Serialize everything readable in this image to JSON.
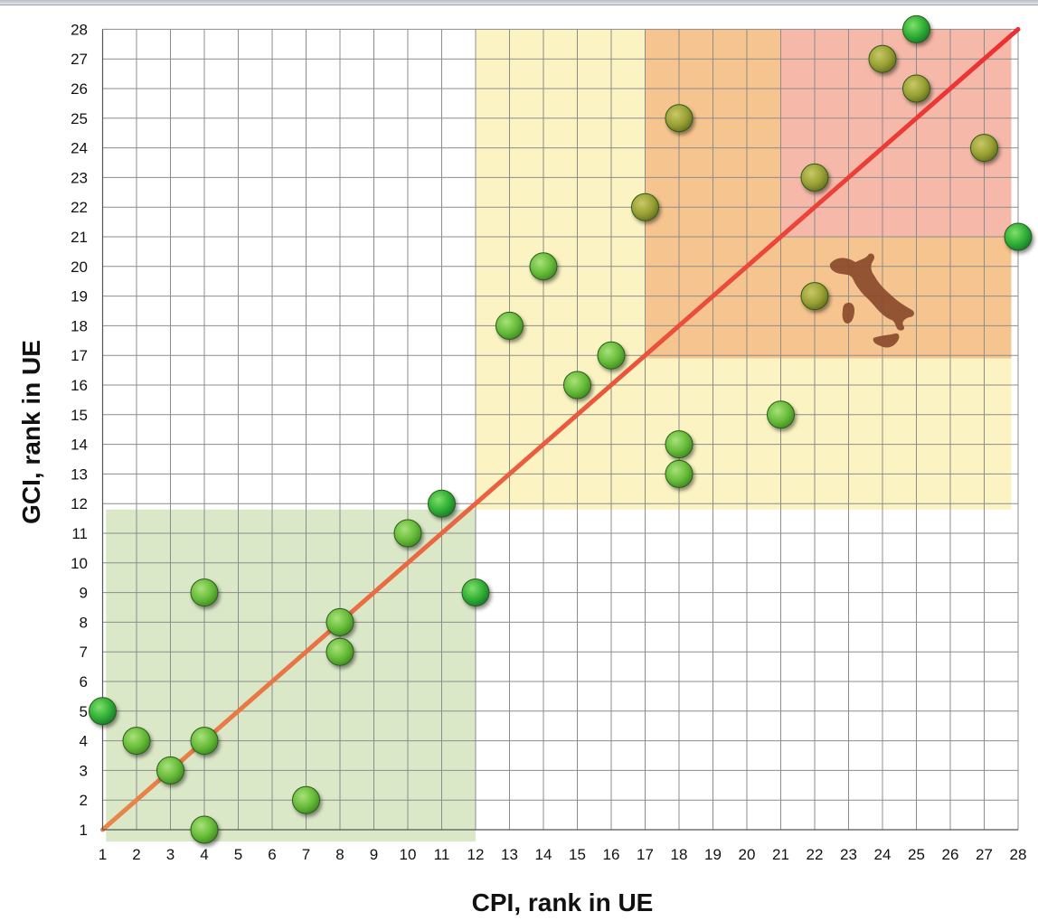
{
  "chart_data": {
    "type": "scatter",
    "xlabel": "CPI, rank in UE",
    "ylabel": "GCI, rank in UE",
    "xlim": [
      1,
      28
    ],
    "ylim": [
      1,
      28
    ],
    "x_ticks": [
      1,
      2,
      3,
      4,
      5,
      6,
      7,
      8,
      9,
      10,
      11,
      12,
      13,
      14,
      15,
      16,
      17,
      18,
      19,
      20,
      21,
      22,
      23,
      24,
      25,
      26,
      27,
      28
    ],
    "y_ticks": [
      1,
      2,
      3,
      4,
      5,
      6,
      7,
      8,
      9,
      10,
      11,
      12,
      13,
      14,
      15,
      16,
      17,
      18,
      19,
      20,
      21,
      22,
      23,
      24,
      25,
      26,
      27,
      28
    ],
    "grid": true,
    "diagonal_line": {
      "from": [
        1,
        1
      ],
      "to": [
        28,
        28
      ]
    },
    "regions": [
      {
        "x": [
          1.1,
          12
        ],
        "y": [
          0.6,
          11.8
        ],
        "color": "#dbe8c8"
      },
      {
        "x": [
          12,
          27.8
        ],
        "y": [
          11.8,
          28
        ],
        "color": "#fbf4c2"
      },
      {
        "x": [
          17,
          27.8
        ],
        "y": [
          16.9,
          28
        ],
        "color": "#f6c48e"
      },
      {
        "x": [
          21,
          27.8
        ],
        "y": [
          21,
          28
        ],
        "color": "#f6b8a8"
      }
    ],
    "marker_colors": {
      "green": "#3cb339",
      "lime": "#6fbf3a",
      "olive": "#9aa236"
    },
    "points": [
      {
        "x": 1,
        "y": 5,
        "color": "green"
      },
      {
        "x": 2,
        "y": 4,
        "color": "lime"
      },
      {
        "x": 3,
        "y": 3,
        "color": "lime"
      },
      {
        "x": 4,
        "y": 4,
        "color": "lime"
      },
      {
        "x": 4,
        "y": 1,
        "color": "lime"
      },
      {
        "x": 4,
        "y": 9,
        "color": "lime"
      },
      {
        "x": 7,
        "y": 2,
        "color": "lime"
      },
      {
        "x": 8,
        "y": 8,
        "color": "lime"
      },
      {
        "x": 8,
        "y": 7,
        "color": "lime"
      },
      {
        "x": 10,
        "y": 11,
        "color": "lime"
      },
      {
        "x": 11,
        "y": 12,
        "color": "green"
      },
      {
        "x": 12,
        "y": 9,
        "color": "green"
      },
      {
        "x": 13,
        "y": 18,
        "color": "lime"
      },
      {
        "x": 14,
        "y": 20,
        "color": "lime"
      },
      {
        "x": 15,
        "y": 16,
        "color": "lime"
      },
      {
        "x": 16,
        "y": 17,
        "color": "lime"
      },
      {
        "x": 17,
        "y": 22,
        "color": "olive"
      },
      {
        "x": 18,
        "y": 25,
        "color": "olive"
      },
      {
        "x": 18,
        "y": 14,
        "color": "lime"
      },
      {
        "x": 18,
        "y": 13,
        "color": "lime"
      },
      {
        "x": 21,
        "y": 15,
        "color": "lime"
      },
      {
        "x": 22,
        "y": 23,
        "color": "olive"
      },
      {
        "x": 22,
        "y": 19,
        "color": "olive"
      },
      {
        "x": 24,
        "y": 27,
        "color": "olive"
      },
      {
        "x": 25,
        "y": 28,
        "color": "green"
      },
      {
        "x": 25,
        "y": 26,
        "color": "olive"
      },
      {
        "x": 27,
        "y": 24,
        "color": "olive"
      },
      {
        "x": 28,
        "y": 21,
        "color": "green"
      }
    ],
    "map_icon": "italy-map-icon"
  }
}
